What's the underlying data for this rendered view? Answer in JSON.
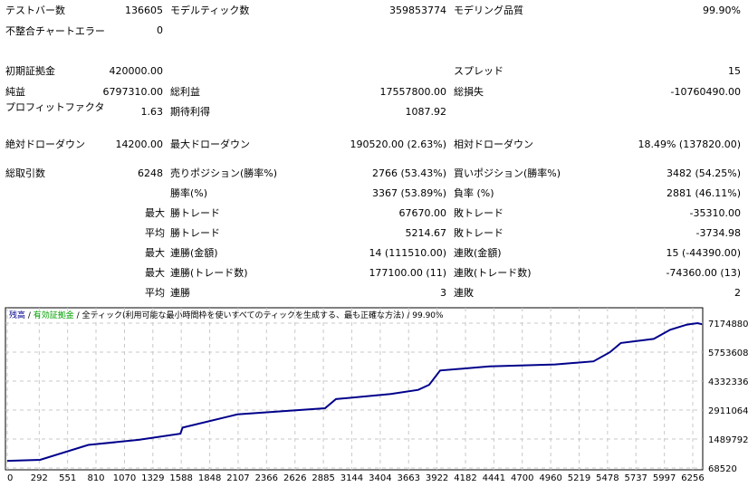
{
  "stats": [
    {
      "label": "テストバー数",
      "value": "136605",
      "label2": "モデルティック数",
      "value2": "359853774",
      "label3": "モデリング品質",
      "value3": "99.90%"
    },
    {
      "label": "不整合チャートエラー",
      "value": "0"
    },
    {
      "label": "初期証拠金",
      "value": "420000.00",
      "label3": "スプレッド",
      "value3": "15"
    },
    {
      "label": "純益",
      "value": "6797310.00",
      "label2": "総利益",
      "value2": "17557800.00",
      "label3": "総損失",
      "value3": "-10760490.00"
    },
    {
      "label": "プロフィットファクタ",
      "value": "1.63",
      "label2": "期待利得",
      "value2": "1087.92"
    },
    {
      "label": "絶対ドローダウン",
      "value": "14200.00",
      "label2": "最大ドローダウン",
      "value2": "190520.00 (2.63%)",
      "label3": "相対ドローダウン",
      "value3": "18.49% (137820.00)"
    },
    {
      "label": "総取引数",
      "value": "6248",
      "label2": "売りポジション(勝率%)",
      "value2": "2766 (53.43%)",
      "label3": "買いポジション(勝率%)",
      "value3": "3482 (54.25%)"
    },
    {
      "label2": "勝率(%)",
      "value2": "3367 (53.89%)",
      "label3": "負率 (%)",
      "value3": "2881 (46.11%)"
    },
    {
      "pre": "最大",
      "label2": "勝トレード",
      "value2": "67670.00",
      "label3": "敗トレード",
      "value3": "-35310.00"
    },
    {
      "pre": "平均",
      "label2": "勝トレード",
      "value2": "5214.67",
      "label3": "敗トレード",
      "value3": "-3734.98"
    },
    {
      "pre": "最大",
      "label2": "連勝(金額)",
      "value2": "14 (111510.00)",
      "label3": "連敗(金額)",
      "value3": "15 (-44390.00)"
    },
    {
      "pre": "最大",
      "label2": "連勝(トレード数)",
      "value2": "177100.00 (11)",
      "label3": "連敗(トレード数)",
      "value3": "-74360.00 (13)"
    },
    {
      "pre": "平均",
      "label2": "連勝",
      "value2": "3",
      "label3": "連敗",
      "value3": "2"
    }
  ],
  "chart": {
    "legend": {
      "balance": "残高",
      "sep": " / ",
      "equity": "有効証拠金",
      "desc": " / 全ティック(利用可能な最小時間枠を使いすべてのティックを生成する、最も正確な方法) / 99.90%"
    },
    "colors": {
      "balance": "#00008B",
      "equity": "#00A000",
      "grid": "#c8c8c8"
    },
    "xticks": [
      "0",
      "292",
      "551",
      "810",
      "1070",
      "1329",
      "1588",
      "1848",
      "2107",
      "2366",
      "2626",
      "2885",
      "3144",
      "3404",
      "3663",
      "3922",
      "4182",
      "4441",
      "4700",
      "4960",
      "5219",
      "5478",
      "5737",
      "5997",
      "6256"
    ],
    "yticks": [
      "7174880",
      "5753608",
      "4332336",
      "2911064",
      "1489792",
      "68520"
    ],
    "xmax": 6330,
    "ymin": 68520,
    "ymax": 7174880,
    "balance": [
      [
        0,
        420000
      ],
      [
        300,
        470000
      ],
      [
        740,
        1200000
      ],
      [
        1200,
        1450000
      ],
      [
        1580,
        1750000
      ],
      [
        1600,
        2050000
      ],
      [
        2100,
        2700000
      ],
      [
        2500,
        2850000
      ],
      [
        2900,
        3000000
      ],
      [
        3000,
        3450000
      ],
      [
        3500,
        3700000
      ],
      [
        3750,
        3900000
      ],
      [
        3850,
        4150000
      ],
      [
        3950,
        4850000
      ],
      [
        4400,
        5050000
      ],
      [
        5000,
        5150000
      ],
      [
        5350,
        5300000
      ],
      [
        5500,
        5750000
      ],
      [
        5600,
        6200000
      ],
      [
        5900,
        6400000
      ],
      [
        6050,
        6850000
      ],
      [
        6200,
        7100000
      ],
      [
        6300,
        7174880
      ],
      [
        6340,
        7120000
      ]
    ]
  }
}
